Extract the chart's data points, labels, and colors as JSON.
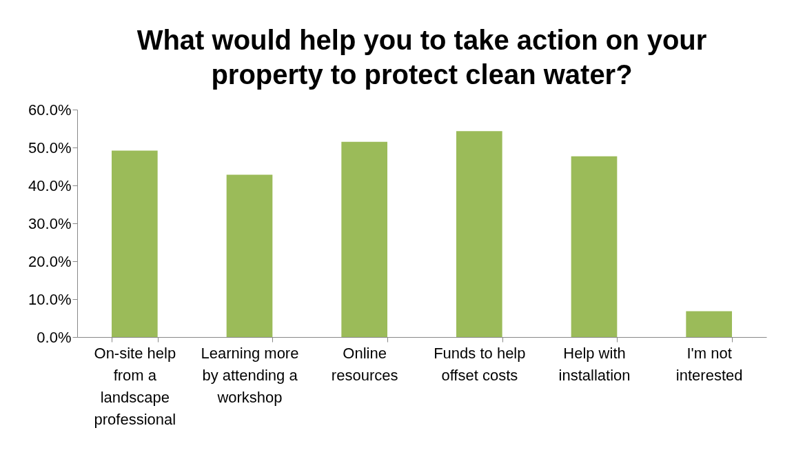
{
  "chart_data": {
    "type": "bar",
    "title": "What would help you to take action on your property to protect clean water?",
    "categories": [
      "On-site help from a landscape professional",
      "Learning more by attending a workshop",
      "Online resources",
      "Funds to help offset costs",
      "Help with installation",
      "I'm not interested"
    ],
    "values": [
      49.2,
      42.8,
      51.5,
      54.3,
      47.7,
      6.8
    ],
    "color": "#9bbb59",
    "ylim": [
      0,
      60
    ],
    "yticks": [
      {
        "value": 0,
        "label": "0.0%"
      },
      {
        "value": 10,
        "label": "10.0%"
      },
      {
        "value": 20,
        "label": "20.0%"
      },
      {
        "value": 30,
        "label": "30.0%"
      },
      {
        "value": 40,
        "label": "40.0%"
      },
      {
        "value": 50,
        "label": "50.0%"
      },
      {
        "value": 60,
        "label": "60.0%"
      }
    ],
    "grid": false
  }
}
